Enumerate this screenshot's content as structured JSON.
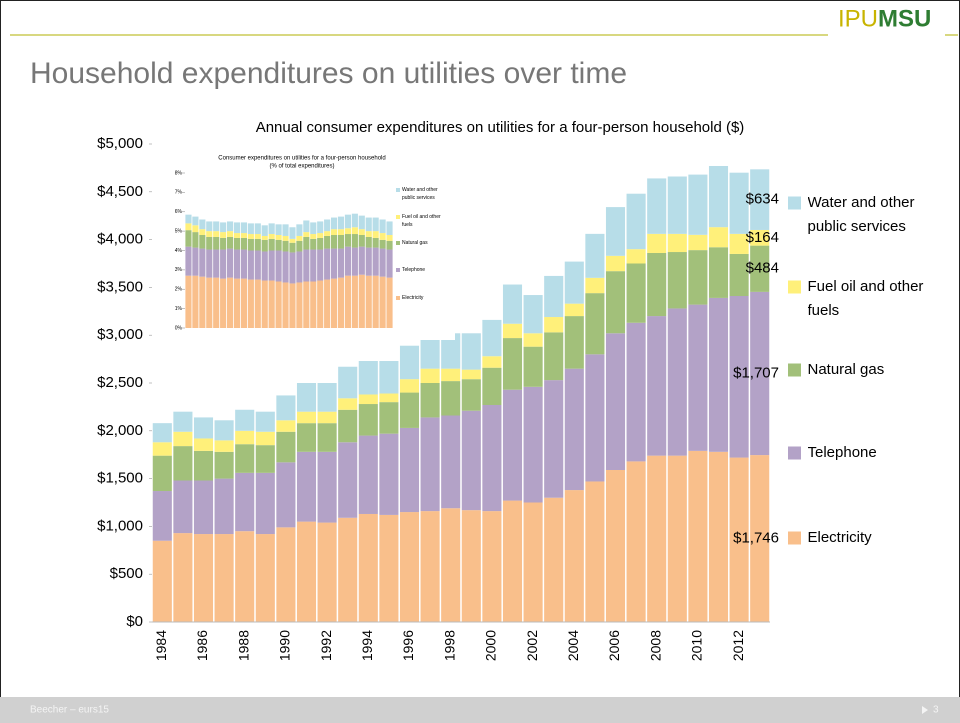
{
  "slide": {
    "logo_left": "IPU",
    "logo_right": "MSU",
    "title": "Household expenditures on utilities over time",
    "footer": "Beecher – eurs15",
    "page_number": "3"
  },
  "chart_data": [
    {
      "type": "stacked-bar",
      "title": "Annual consumer expenditures on utilities for a four-person household ($)",
      "categories": [
        "1984",
        null,
        "1986",
        null,
        "1988",
        null,
        "1990",
        null,
        "1992",
        null,
        "1994",
        null,
        "1996",
        null,
        "1998",
        null,
        "2000",
        null,
        "2002",
        null,
        "2004",
        null,
        "2006",
        null,
        "2008",
        null,
        "2010",
        null,
        "2012",
        null
      ],
      "ylim": [
        0,
        5000
      ],
      "yticks": [
        {
          "value": 0,
          "label": "$0"
        },
        {
          "value": 500,
          "label": "$500"
        },
        {
          "value": 1000,
          "label": "$1,000"
        },
        {
          "value": 1500,
          "label": "$1,500"
        },
        {
          "value": 2000,
          "label": "$2,000"
        },
        {
          "value": 2500,
          "label": "$2,500"
        },
        {
          "value": 3000,
          "label": "$3,000"
        },
        {
          "value": 3500,
          "label": "$3,500"
        },
        {
          "value": 4000,
          "label": "$4,000"
        },
        {
          "value": 4500,
          "label": "$4,500"
        },
        {
          "value": 5000,
          "label": "$5,000"
        }
      ],
      "grid": false,
      "legend": "right",
      "series": [
        {
          "name": "Electricity",
          "color": "#f9bf8b",
          "values": [
            850,
            930,
            920,
            920,
            950,
            920,
            990,
            1050,
            1040,
            1090,
            1130,
            1120,
            1150,
            1160,
            1190,
            1170,
            1160,
            1270,
            1250,
            1300,
            1380,
            1470,
            1590,
            1680,
            1740,
            1740,
            1790,
            1780,
            1720,
            1746
          ],
          "value_labels": [
            null,
            null,
            null,
            null,
            null,
            null,
            null,
            null,
            null,
            null,
            null,
            null,
            null,
            null,
            null,
            null,
            null,
            null,
            null,
            null,
            null,
            null,
            null,
            null,
            null,
            null,
            null,
            null,
            null,
            "$1,746"
          ]
        },
        {
          "name": "Telephone",
          "color": "#b3a2c7",
          "values": [
            520,
            550,
            560,
            580,
            610,
            640,
            680,
            730,
            740,
            790,
            820,
            850,
            880,
            980,
            970,
            1040,
            1110,
            1160,
            1210,
            1230,
            1270,
            1330,
            1430,
            1450,
            1460,
            1540,
            1530,
            1610,
            1690,
            1707
          ],
          "value_labels": [
            null,
            null,
            null,
            null,
            null,
            null,
            null,
            null,
            null,
            null,
            null,
            null,
            null,
            null,
            null,
            null,
            null,
            null,
            null,
            null,
            null,
            null,
            null,
            null,
            null,
            null,
            null,
            null,
            null,
            "$1,707"
          ]
        },
        {
          "name": "Natural gas",
          "color": "#a2c07a",
          "values": [
            370,
            360,
            310,
            280,
            300,
            290,
            320,
            300,
            300,
            340,
            330,
            330,
            370,
            360,
            360,
            330,
            390,
            540,
            420,
            500,
            550,
            640,
            650,
            620,
            660,
            590,
            570,
            530,
            440,
            484
          ],
          "value_labels": [
            null,
            null,
            null,
            null,
            null,
            null,
            null,
            null,
            null,
            null,
            null,
            null,
            null,
            null,
            null,
            null,
            null,
            null,
            null,
            null,
            null,
            null,
            null,
            null,
            null,
            null,
            null,
            null,
            null,
            "$484"
          ]
        },
        {
          "name": "Fuel oil and other fuels",
          "color": "#fff07a",
          "values": [
            140,
            150,
            130,
            120,
            140,
            140,
            120,
            120,
            120,
            120,
            100,
            90,
            140,
            150,
            130,
            100,
            120,
            150,
            140,
            160,
            130,
            160,
            160,
            150,
            200,
            190,
            160,
            210,
            210,
            164
          ],
          "value_labels": [
            null,
            null,
            null,
            null,
            null,
            null,
            null,
            null,
            null,
            null,
            null,
            null,
            null,
            null,
            null,
            null,
            null,
            null,
            null,
            null,
            null,
            null,
            null,
            null,
            null,
            null,
            null,
            null,
            null,
            "$164"
          ]
        },
        {
          "name": "Water and other public services",
          "color": "#b7dde8",
          "values": [
            200,
            210,
            220,
            210,
            220,
            210,
            260,
            300,
            300,
            330,
            350,
            340,
            350,
            330,
            370,
            380,
            380,
            410,
            400,
            430,
            440,
            460,
            510,
            580,
            580,
            600,
            630,
            640,
            640,
            634
          ],
          "value_labels": [
            null,
            null,
            null,
            null,
            null,
            null,
            null,
            null,
            null,
            null,
            null,
            null,
            null,
            null,
            null,
            null,
            null,
            null,
            null,
            null,
            null,
            null,
            null,
            null,
            null,
            null,
            null,
            null,
            null,
            "$634"
          ]
        }
      ]
    },
    {
      "type": "stacked-bar",
      "title": "Consumer expenditures on utilities for a four-person household",
      "subtitle": "(% of total expenditures)",
      "categories": [
        null,
        null,
        null,
        null,
        null,
        null,
        null,
        null,
        null,
        null,
        null,
        null,
        null,
        null,
        null,
        null,
        null,
        null,
        null,
        null,
        null,
        null,
        null,
        null,
        null,
        null,
        null,
        null,
        null,
        null
      ],
      "ylim": [
        0,
        8
      ],
      "yticks": [
        {
          "value": 0,
          "label": "0%"
        },
        {
          "value": 1,
          "label": "1%"
        },
        {
          "value": 2,
          "label": "2%"
        },
        {
          "value": 3,
          "label": "3%"
        },
        {
          "value": 4,
          "label": "4%"
        },
        {
          "value": 5,
          "label": "5%"
        },
        {
          "value": 6,
          "label": "6%"
        },
        {
          "value": 7,
          "label": "7%"
        },
        {
          "value": 8,
          "label": "8%"
        }
      ],
      "grid": false,
      "legend": "right",
      "series": [
        {
          "name": "Electricity",
          "color": "#f9bf8b",
          "values": [
            2.7,
            2.7,
            2.65,
            2.6,
            2.6,
            2.55,
            2.6,
            2.55,
            2.55,
            2.5,
            2.5,
            2.45,
            2.45,
            2.4,
            2.35,
            2.3,
            2.35,
            2.4,
            2.4,
            2.45,
            2.5,
            2.55,
            2.6,
            2.7,
            2.7,
            2.75,
            2.7,
            2.7,
            2.65,
            2.6
          ]
        },
        {
          "name": "Telephone",
          "color": "#b3a2c7",
          "values": [
            1.5,
            1.45,
            1.45,
            1.45,
            1.45,
            1.5,
            1.5,
            1.5,
            1.5,
            1.5,
            1.5,
            1.5,
            1.55,
            1.6,
            1.6,
            1.6,
            1.6,
            1.65,
            1.65,
            1.6,
            1.6,
            1.55,
            1.5,
            1.5,
            1.45,
            1.45,
            1.45,
            1.45,
            1.45,
            1.45
          ]
        },
        {
          "name": "Natural gas",
          "color": "#a2c07a",
          "values": [
            0.85,
            0.8,
            0.7,
            0.65,
            0.65,
            0.6,
            0.6,
            0.6,
            0.6,
            0.6,
            0.6,
            0.6,
            0.6,
            0.55,
            0.55,
            0.5,
            0.55,
            0.65,
            0.55,
            0.6,
            0.65,
            0.7,
            0.7,
            0.65,
            0.7,
            0.6,
            0.55,
            0.5,
            0.45,
            0.45
          ]
        },
        {
          "name": "Fuel oil and other fuels",
          "color": "#fff07a",
          "values": [
            0.35,
            0.35,
            0.3,
            0.3,
            0.3,
            0.3,
            0.3,
            0.25,
            0.25,
            0.25,
            0.25,
            0.2,
            0.25,
            0.25,
            0.25,
            0.2,
            0.25,
            0.25,
            0.25,
            0.25,
            0.25,
            0.3,
            0.3,
            0.3,
            0.35,
            0.3,
            0.3,
            0.35,
            0.35,
            0.3
          ]
        },
        {
          "name": "Water and other public services",
          "color": "#b7dde8",
          "values": [
            0.45,
            0.45,
            0.5,
            0.5,
            0.5,
            0.5,
            0.5,
            0.55,
            0.55,
            0.55,
            0.55,
            0.55,
            0.55,
            0.55,
            0.6,
            0.6,
            0.6,
            0.6,
            0.6,
            0.6,
            0.6,
            0.6,
            0.65,
            0.7,
            0.7,
            0.7,
            0.7,
            0.7,
            0.7,
            0.7
          ]
        }
      ]
    }
  ]
}
